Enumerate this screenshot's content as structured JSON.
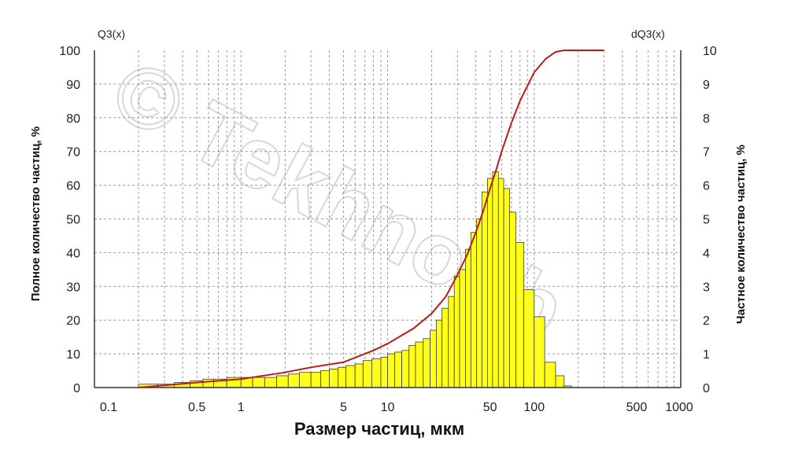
{
  "chart_data": {
    "type": "bar",
    "x_scale": "log",
    "xlim": [
      0.1,
      1000
    ],
    "ylim_left": [
      0,
      100
    ],
    "ylim_right": [
      0,
      10
    ],
    "xlabel": "Размер частиц, мкм",
    "ylabel_left": "Полное количество частиц, %",
    "ylabel_right": "Частное количество частиц, %",
    "left_axis_name": "Q3(x)",
    "right_axis_name": "dQ3(x)",
    "x_tick_labels": [
      "0.1",
      "0.5",
      "1",
      "5",
      "10",
      "50",
      "100",
      "500",
      "1000"
    ],
    "x_tick_values": [
      0.1,
      0.5,
      1,
      5,
      10,
      50,
      100,
      500,
      1000
    ],
    "y_left_ticks": [
      "0",
      "10",
      "20",
      "30",
      "40",
      "50",
      "60",
      "70",
      "80",
      "90",
      "100"
    ],
    "y_right_ticks": [
      "0",
      "1",
      "2",
      "3",
      "4",
      "5",
      "6",
      "7",
      "8",
      "9",
      "10"
    ],
    "grid": true,
    "watermark": "© Tekhnoob",
    "histogram": {
      "name": "dQ3(x)",
      "color": "#ffff1a",
      "bin_edges": [
        0.2,
        0.27,
        0.35,
        0.45,
        0.55,
        0.65,
        0.8,
        1.0,
        1.2,
        1.45,
        1.75,
        2.1,
        2.5,
        3.0,
        3.5,
        4.0,
        4.6,
        5.2,
        6.0,
        6.8,
        7.8,
        9.0,
        10.0,
        11.2,
        12.5,
        14.0,
        15.5,
        17.5,
        19.5,
        21.5,
        23.5,
        26.0,
        28.5,
        31.0,
        34.0,
        37.0,
        40.5,
        44.0,
        48.0,
        52.0,
        57.0,
        62.0,
        68.0,
        75.0,
        85.0,
        100.0,
        118.0,
        140.0,
        160.0,
        180.0
      ],
      "values": [
        0.1,
        0.1,
        0.15,
        0.2,
        0.25,
        0.25,
        0.3,
        0.3,
        0.3,
        0.3,
        0.35,
        0.4,
        0.45,
        0.45,
        0.5,
        0.55,
        0.6,
        0.65,
        0.7,
        0.8,
        0.85,
        0.9,
        1.0,
        1.05,
        1.1,
        1.25,
        1.35,
        1.45,
        1.7,
        2.0,
        2.35,
        2.7,
        3.3,
        3.5,
        4.1,
        4.6,
        5.0,
        5.8,
        6.2,
        6.4,
        6.2,
        5.9,
        5.2,
        4.3,
        2.9,
        2.1,
        0.75,
        0.35,
        0.05
      ]
    },
    "cumulative": {
      "name": "Q3(x)",
      "color": "#b81c1c",
      "x": [
        0.2,
        0.5,
        1,
        2,
        3,
        5,
        8,
        10,
        15,
        20,
        25,
        30,
        35,
        40,
        45,
        50,
        55,
        60,
        70,
        80,
        100,
        120,
        140,
        160,
        300
      ],
      "y": [
        0,
        1.5,
        2.5,
        4.5,
        6,
        7.5,
        11,
        13,
        17.5,
        22,
        27,
        33.5,
        39.5,
        46,
        52.5,
        59,
        64.5,
        70,
        78.5,
        85,
        93.5,
        97.5,
        99.5,
        100,
        100
      ]
    }
  }
}
